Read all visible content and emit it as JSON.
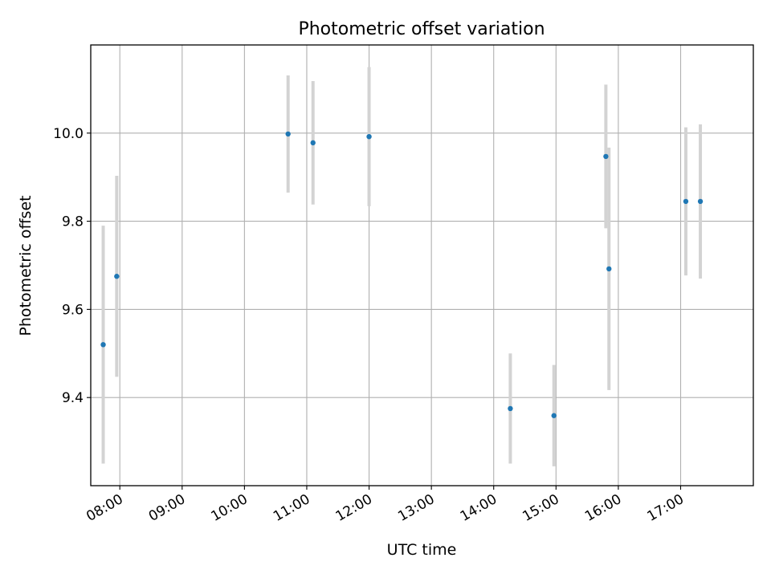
{
  "chart_data": {
    "type": "scatter",
    "title": "Photometric offset variation",
    "xlabel": "UTC time",
    "ylabel": "Photometric offset",
    "x_tick_labels": [
      "08:00",
      "09:00",
      "10:00",
      "11:00",
      "12:00",
      "13:00",
      "14:00",
      "15:00",
      "16:00",
      "17:00"
    ],
    "y_tick_labels": [
      "9.4",
      "9.6",
      "9.8",
      "10.0"
    ],
    "xlim": [
      "07:32",
      "18:10"
    ],
    "ylim": [
      9.2,
      10.2
    ],
    "grid": true,
    "point_color": "#1f77b4",
    "errorbar_color": "#d3d3d3",
    "points": [
      {
        "x": "07:44",
        "y": 9.52,
        "err": 0.27
      },
      {
        "x": "07:57",
        "y": 9.675,
        "err": 0.228
      },
      {
        "x": "10:42",
        "y": 9.998,
        "err": 0.133
      },
      {
        "x": "11:06",
        "y": 9.978,
        "err": 0.14
      },
      {
        "x": "12:00",
        "y": 9.992,
        "err": 0.158
      },
      {
        "x": "14:16",
        "y": 9.375,
        "err": 0.125
      },
      {
        "x": "14:58",
        "y": 9.359,
        "err": 0.115
      },
      {
        "x": "15:48",
        "y": 9.947,
        "err": 0.163
      },
      {
        "x": "15:51",
        "y": 9.692,
        "err": 0.275
      },
      {
        "x": "17:05",
        "y": 9.845,
        "err": 0.168
      },
      {
        "x": "17:19",
        "y": 9.845,
        "err": 0.175
      }
    ]
  }
}
